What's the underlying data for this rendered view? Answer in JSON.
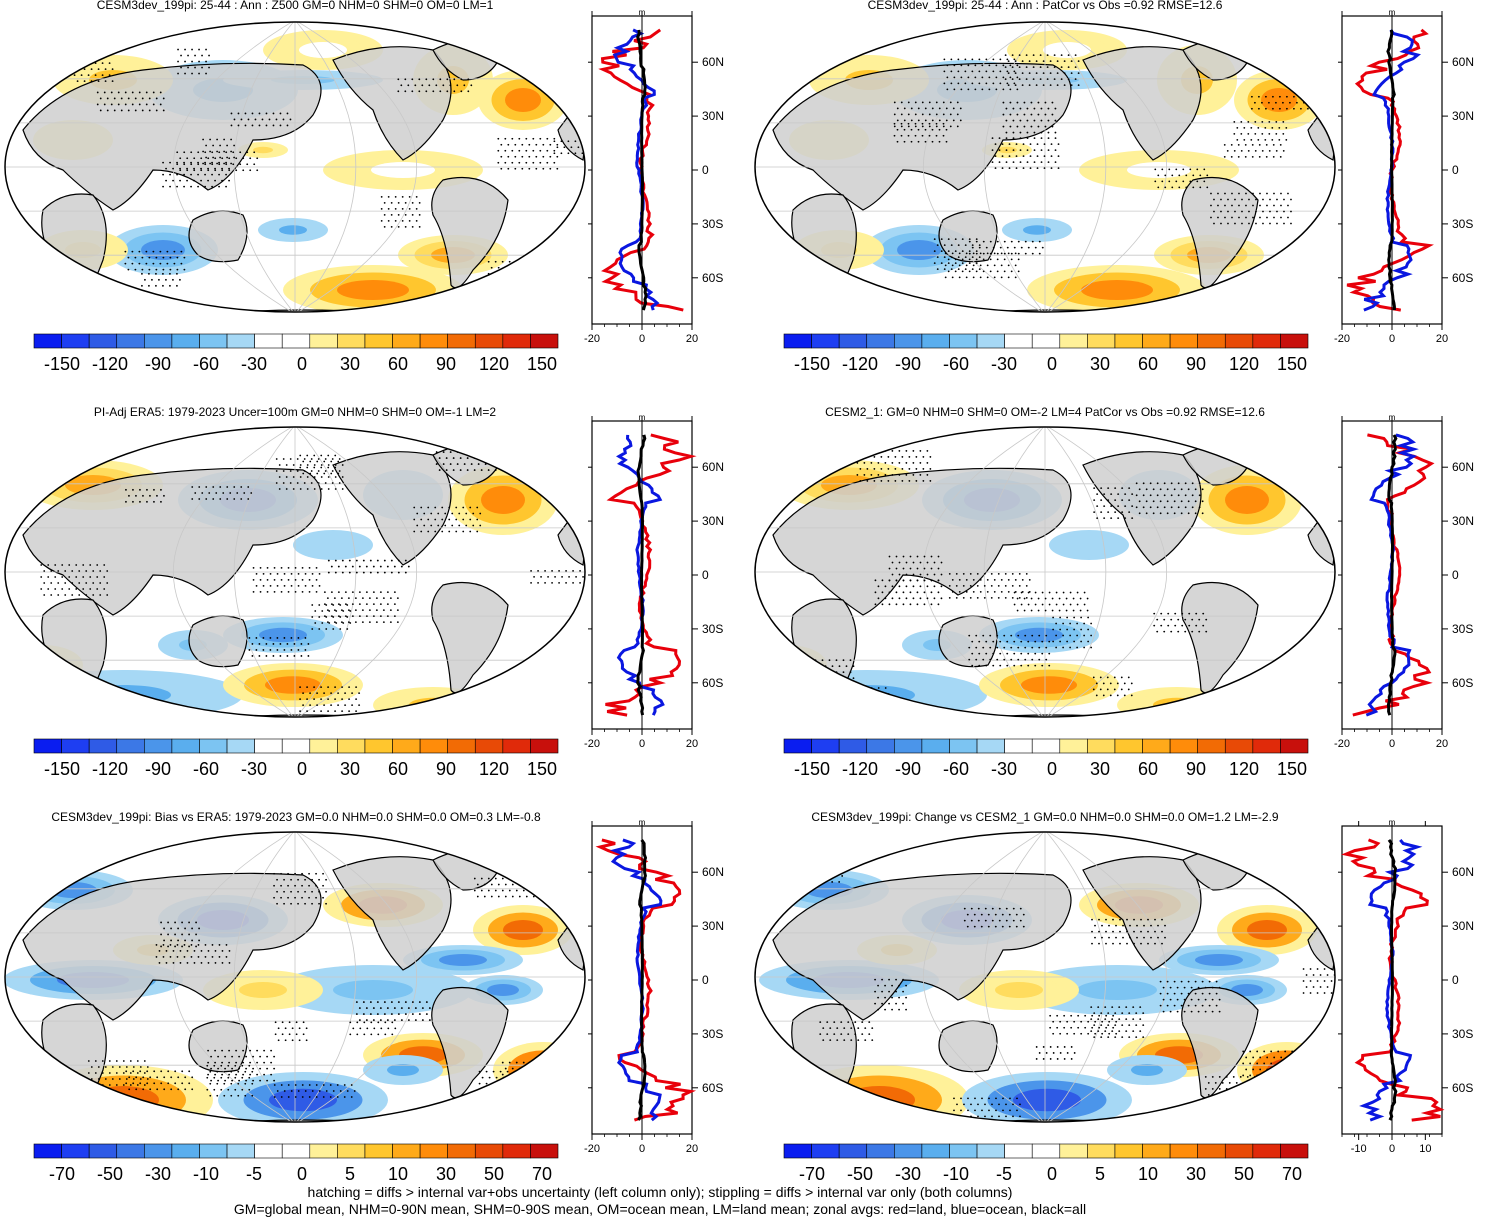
{
  "colors": {
    "land": "#cfcfcf",
    "coast": "#000000",
    "land_zonal": "#e8000b",
    "ocean_zonal": "#0a17e0",
    "all_zonal": "#000000",
    "palette": [
      "#0a1df0",
      "#1e3ef2",
      "#2f5be6",
      "#3c78e6",
      "#4b95ea",
      "#5aaeee",
      "#7cc4f2",
      "#a6d8f5",
      "#ffffff",
      "#ffffff",
      "#fff199",
      "#ffdc5e",
      "#ffc62e",
      "#ffaa1a",
      "#ff8c0a",
      "#f26b05",
      "#e84a06",
      "#e02a0a",
      "#c8100c"
    ]
  },
  "legend_notes": [
    "hatching = diffs > internal var+obs uncertainty (left column only); stippling = diffs > internal var only (both columns)",
    "GM=global mean, NHM=0-90N mean, SHM=0-90S mean, OM=ocean mean, LM=land mean; zonal avgs: red=land, blue=ocean, black=all"
  ],
  "chart_data": [
    {
      "type": "heatmap",
      "id": "p1",
      "title": "CESM3dev_199pi: 25-44 : Ann : Z500 GM=0 NHM=0 SHM=0 OM=0 LM=1",
      "colorbar": {
        "ticks": [
          "-150",
          "-120",
          "-90",
          "-60",
          "-30",
          "0",
          "30",
          "60",
          "90",
          "120",
          "150"
        ]
      },
      "zonal": {
        "units": "m",
        "lat_ticks": [
          "60N",
          "30N",
          "0",
          "30S",
          "60S"
        ],
        "x_ticks": [
          "-20",
          "0",
          "20"
        ],
        "xlim": [
          -20,
          20
        ]
      }
    },
    {
      "type": "heatmap",
      "id": "p2",
      "title": "CESM3dev_199pi: 25-44 : Ann : PatCor vs Obs =0.92 RMSE=12.6",
      "colorbar": {
        "ticks": [
          "-150",
          "-120",
          "-90",
          "-60",
          "-30",
          "0",
          "30",
          "60",
          "90",
          "120",
          "150"
        ]
      },
      "zonal": {
        "units": "m",
        "lat_ticks": [
          "60N",
          "30N",
          "0",
          "30S",
          "60S"
        ],
        "x_ticks": [
          "-20",
          "0",
          "20"
        ],
        "xlim": [
          -20,
          20
        ]
      }
    },
    {
      "type": "heatmap",
      "id": "p3",
      "title": "PI-Adj ERA5: 1979-2023 Uncer=100m GM=0 NHM=0 SHM=0 OM=-1 LM=2",
      "colorbar": {
        "ticks": [
          "-150",
          "-120",
          "-90",
          "-60",
          "-30",
          "0",
          "30",
          "60",
          "90",
          "120",
          "150"
        ]
      },
      "zonal": {
        "units": "m",
        "lat_ticks": [
          "60N",
          "30N",
          "0",
          "30S",
          "60S"
        ],
        "x_ticks": [
          "-20",
          "0",
          "20"
        ],
        "xlim": [
          -20,
          20
        ]
      }
    },
    {
      "type": "heatmap",
      "id": "p4",
      "title": "CESM2_1: GM=0 NHM=0 SHM=0 OM=-2 LM=4 PatCor vs Obs =0.92 RMSE=12.6",
      "colorbar": {
        "ticks": [
          "-150",
          "-120",
          "-90",
          "-60",
          "-30",
          "0",
          "30",
          "60",
          "90",
          "120",
          "150"
        ]
      },
      "zonal": {
        "units": "m",
        "lat_ticks": [
          "60N",
          "30N",
          "0",
          "30S",
          "60S"
        ],
        "x_ticks": [
          "-20",
          "0",
          "20"
        ],
        "xlim": [
          -20,
          20
        ]
      }
    },
    {
      "type": "heatmap",
      "id": "p5",
      "title": "CESM3dev_199pi: Bias vs ERA5: 1979-2023 GM=0.0 NHM=0.0 SHM=0.0 OM=0.3 LM=-0.8",
      "colorbar": {
        "ticks": [
          "-70",
          "-50",
          "-30",
          "-10",
          "-5",
          "0",
          "5",
          "10",
          "30",
          "50",
          "70"
        ]
      },
      "zonal": {
        "units": "m",
        "lat_ticks": [
          "60N",
          "30N",
          "0",
          "30S",
          "60S"
        ],
        "x_ticks": [
          "-20",
          "0",
          "20"
        ],
        "xlim": [
          -20,
          20
        ]
      }
    },
    {
      "type": "heatmap",
      "id": "p6",
      "title": "CESM3dev_199pi: Change vs CESM2_1 GM=0.0 NHM=0.0 SHM=0.0 OM=1.2 LM=-2.9",
      "colorbar": {
        "ticks": [
          "-70",
          "-50",
          "-30",
          "-10",
          "-5",
          "0",
          "5",
          "10",
          "30",
          "50",
          "70"
        ]
      },
      "zonal": {
        "units": "m",
        "lat_ticks": [
          "60N",
          "30N",
          "0",
          "30S",
          "60S"
        ],
        "x_ticks": [
          "-10",
          "0",
          "10"
        ],
        "xlim": [
          -15,
          15
        ]
      }
    }
  ]
}
